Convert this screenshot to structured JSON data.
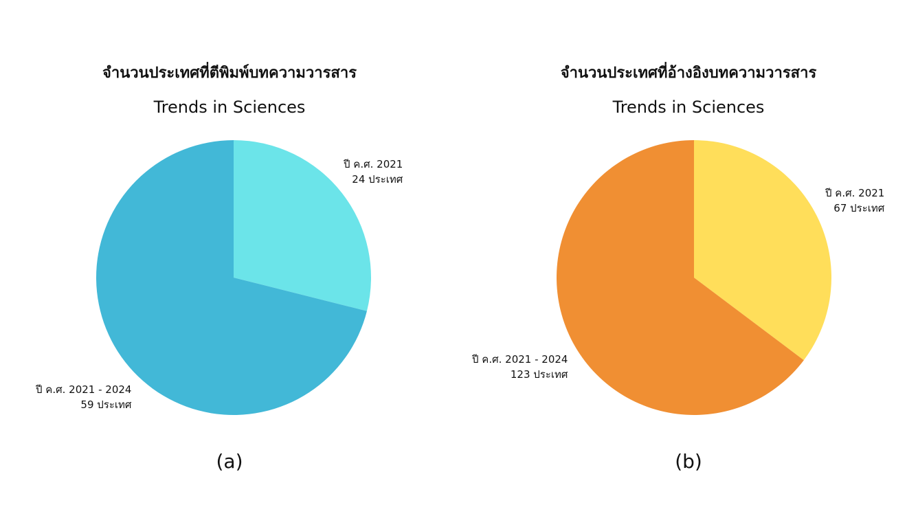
{
  "chart_data": [
    {
      "type": "pie",
      "title": "จำนวนประเทศที่ตีพิมพ์บทความวารสาร",
      "subtitle": "Trends in Sciences",
      "caption": "(a)",
      "slices": [
        {
          "label": "ปี ค.ศ. 2021",
          "value": 24,
          "value_text": "24 ประเทศ",
          "color": "#6BE4E9"
        },
        {
          "label": "ปี ค.ศ. 2021 - 2024",
          "value": 59,
          "value_text": "59 ประเทศ",
          "color": "#42B8D7"
        }
      ]
    },
    {
      "type": "pie",
      "title": "จำนวนประเทศที่อ้างอิงบทความวารสาร",
      "subtitle": "Trends in Sciences",
      "caption": "(b)",
      "slices": [
        {
          "label": "ปี ค.ศ. 2021",
          "value": 67,
          "value_text": "67 ประเทศ",
          "color": "#FFDE5A"
        },
        {
          "label": "ปี ค.ศ. 2021 - 2024",
          "value": 123,
          "value_text": "123 ประเทศ",
          "color": "#F08F33"
        }
      ]
    }
  ]
}
